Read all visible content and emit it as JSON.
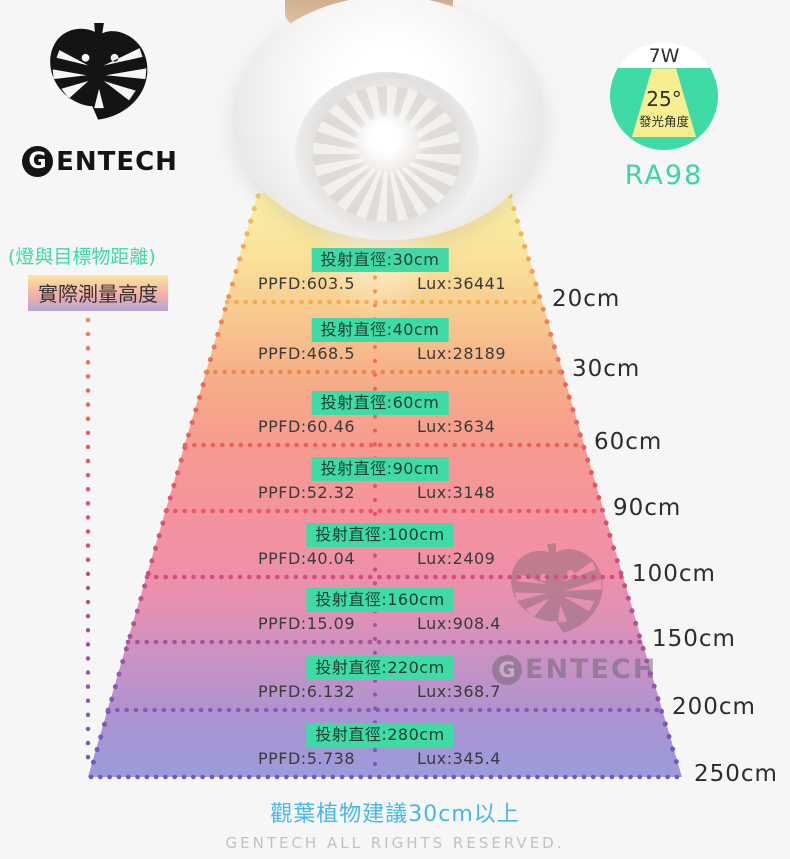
{
  "brand": {
    "g": "G",
    "rest": "ENTECH"
  },
  "badge": {
    "wattage": "7W",
    "angle": "25°",
    "angle_label": "發光角度",
    "cri": "RA98"
  },
  "colors": {
    "teal": "#3EDBA7",
    "beam_yellow": "#F6EE90",
    "accent_blue": "#45B8E9",
    "copyright_gray": "#C2C2C2"
  },
  "left_labels": {
    "distance_note": "(燈與目標物距離)",
    "height_label": "實際測量高度"
  },
  "cone": {
    "label_bg": "#3EDBA7",
    "rows": [
      {
        "diameter": "投射直徑:30cm",
        "ppfd": "PPFD:603.5",
        "lux": "Lux:36441",
        "distance": "20cm",
        "line_color": "#F5AB4F"
      },
      {
        "diameter": "投射直徑:40cm",
        "ppfd": "PPFD:468.5",
        "lux": "Lux:28189",
        "distance": "30cm",
        "line_color": "#F0854F"
      },
      {
        "diameter": "投射直徑:60cm",
        "ppfd": "PPFD:60.46",
        "lux": "Lux:3634",
        "distance": "60cm",
        "line_color": "#EC6156"
      },
      {
        "diameter": "投射直徑:90cm",
        "ppfd": "PPFD:52.32",
        "lux": "Lux:3148",
        "distance": "90cm",
        "line_color": "#E85865"
      },
      {
        "diameter": "投射直徑:100cm",
        "ppfd": "PPFD:40.04",
        "lux": "Lux:2409",
        "distance": "100cm",
        "line_color": "#D24E7C"
      },
      {
        "diameter": "投射直徑:160cm",
        "ppfd": "PPFD:15.09",
        "lux": "Lux:908.4",
        "distance": "150cm",
        "line_color": "#AA519F"
      },
      {
        "diameter": "投射直徑:220cm",
        "ppfd": "PPFD:6.132",
        "lux": "Lux:368.7",
        "distance": "200cm",
        "line_color": "#8A58B8"
      },
      {
        "diameter": "投射直徑:280cm",
        "ppfd": "PPFD:5.738",
        "lux": "Lux:345.4",
        "distance": "250cm",
        "line_color": "#6F57C6"
      }
    ]
  },
  "watermark": {
    "g": "G",
    "rest": "ENTECH"
  },
  "footer": {
    "recommendation": "觀葉植物建議30cm以上",
    "copyright": "GENTECH ALL RIGHTS RESERVED."
  }
}
